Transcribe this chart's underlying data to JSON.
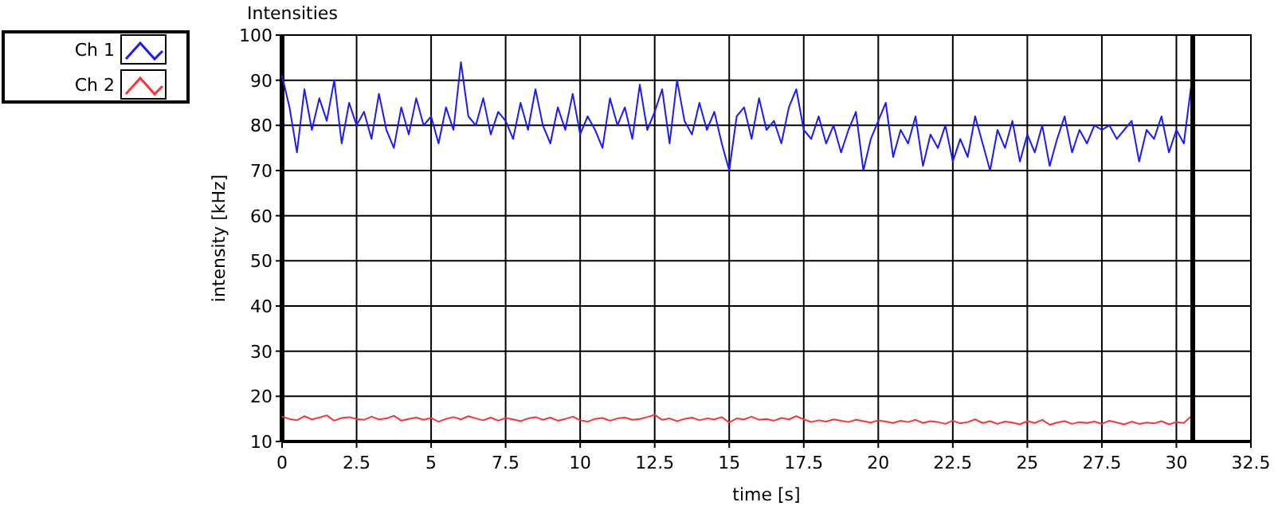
{
  "chart_data": {
    "type": "line",
    "title": "Intensities",
    "xlabel": "time [s]",
    "ylabel": "intensity [kHz]",
    "xlim": [
      0,
      32.5
    ],
    "xticks": [
      0,
      2.5,
      5,
      7.5,
      10,
      12.5,
      15,
      17.5,
      20,
      22.5,
      25,
      27.5,
      30,
      32.5
    ],
    "ylim": [
      10,
      100
    ],
    "yticks": [
      10,
      20,
      30,
      40,
      50,
      60,
      70,
      80,
      90,
      100
    ],
    "grid": true,
    "legend": "top left",
    "x": [
      0,
      0.25,
      0.5,
      0.75,
      1,
      1.25,
      1.5,
      1.75,
      2,
      2.25,
      2.5,
      2.75,
      3,
      3.25,
      3.5,
      3.75,
      4,
      4.25,
      4.5,
      4.75,
      5,
      5.25,
      5.5,
      5.75,
      6,
      6.25,
      6.5,
      6.75,
      7,
      7.25,
      7.5,
      7.75,
      8,
      8.25,
      8.5,
      8.75,
      9,
      9.25,
      9.5,
      9.75,
      10,
      10.25,
      10.5,
      10.75,
      11,
      11.25,
      11.5,
      11.75,
      12,
      12.25,
      12.5,
      12.75,
      13,
      13.25,
      13.5,
      13.75,
      14,
      14.25,
      14.5,
      14.75,
      15,
      15.25,
      15.5,
      15.75,
      16,
      16.25,
      16.5,
      16.75,
      17,
      17.25,
      17.5,
      17.75,
      18,
      18.25,
      18.5,
      18.75,
      19,
      19.25,
      19.5,
      19.75,
      20,
      20.25,
      20.5,
      20.75,
      21,
      21.25,
      21.5,
      21.75,
      22,
      22.25,
      22.5,
      22.75,
      23,
      23.25,
      23.5,
      23.75,
      24,
      24.25,
      24.5,
      24.75,
      25,
      25.25,
      25.5,
      25.75,
      26,
      26.25,
      26.5,
      26.75,
      27,
      27.25,
      27.5,
      27.75,
      28,
      28.25,
      28.5,
      28.75,
      29,
      29.25,
      29.5,
      29.75,
      30,
      30.25,
      30.5
    ],
    "ref_lines": [
      {
        "axis": "x",
        "value": 30.55,
        "color": "#000000"
      }
    ],
    "series": [
      {
        "name": "Ch 1",
        "color": "#1a1aff",
        "values": [
          91,
          84,
          74,
          88,
          79,
          86,
          81,
          90,
          76,
          85,
          80,
          83,
          77,
          87,
          79,
          75,
          84,
          78,
          86,
          80,
          82,
          76,
          84,
          79,
          94,
          82,
          80,
          86,
          78,
          83,
          81,
          77,
          85,
          79,
          88,
          80,
          76,
          84,
          79,
          87,
          78,
          82,
          79,
          75,
          86,
          80,
          84,
          77,
          89,
          79,
          83,
          88,
          76,
          90,
          81,
          78,
          85,
          79,
          83,
          76,
          70,
          82,
          84,
          77,
          86,
          79,
          81,
          76,
          84,
          88,
          79,
          77,
          82,
          76,
          80,
          74,
          79,
          83,
          70,
          77,
          81,
          85,
          73,
          79,
          76,
          82,
          71,
          78,
          75,
          80,
          72,
          77,
          73,
          82,
          76,
          70,
          79,
          75,
          81,
          72,
          78,
          74,
          80,
          71,
          77,
          82,
          74,
          79,
          76,
          80,
          79,
          80,
          77,
          79,
          81,
          72,
          79,
          77,
          82,
          74,
          79,
          76,
          89
        ]
      },
      {
        "name": "Ch 2",
        "color": "#ff3333",
        "values": [
          15.5,
          15,
          14.7,
          15.6,
          14.9,
          15.3,
          15.8,
          14.6,
          15.2,
          15.4,
          15,
          14.8,
          15.5,
          14.9,
          15.1,
          15.7,
          14.6,
          15,
          15.3,
          14.8,
          15.2,
          14.4,
          15,
          15.4,
          14.9,
          15.6,
          15.1,
          14.7,
          15.3,
          14.6,
          15.2,
          14.9,
          14.5,
          15.1,
          15.4,
          14.8,
          15.3,
          14.6,
          15,
          15.5,
          14.7,
          14.4,
          15,
          15.2,
          14.6,
          15.1,
          15.3,
          14.8,
          15,
          15.4,
          15.9,
          14.8,
          15.1,
          14.5,
          15,
          15.3,
          14.7,
          15.1,
          14.9,
          15.4,
          14.2,
          15.1,
          14.9,
          15.5,
          14.8,
          15,
          14.6,
          15.2,
          14.9,
          15.6,
          14.9,
          14.3,
          14.7,
          14.4,
          14.9,
          14.6,
          14.3,
          14.8,
          14.5,
          14.2,
          14.7,
          14.4,
          14.1,
          14.6,
          14.3,
          14.8,
          14.1,
          14.5,
          14.3,
          13.9,
          14.6,
          14,
          14.3,
          14.9,
          14.1,
          14.5,
          13.9,
          14.4,
          14.2,
          13.8,
          14.5,
          14.1,
          14.8,
          13.7,
          14.2,
          14.5,
          13.9,
          14.3,
          14.1,
          14.4,
          13.9,
          14.6,
          14.2,
          13.8,
          14.4,
          13.9,
          14.2,
          14,
          14.5,
          13.8,
          14.3,
          14.1,
          15.6
        ]
      }
    ]
  }
}
